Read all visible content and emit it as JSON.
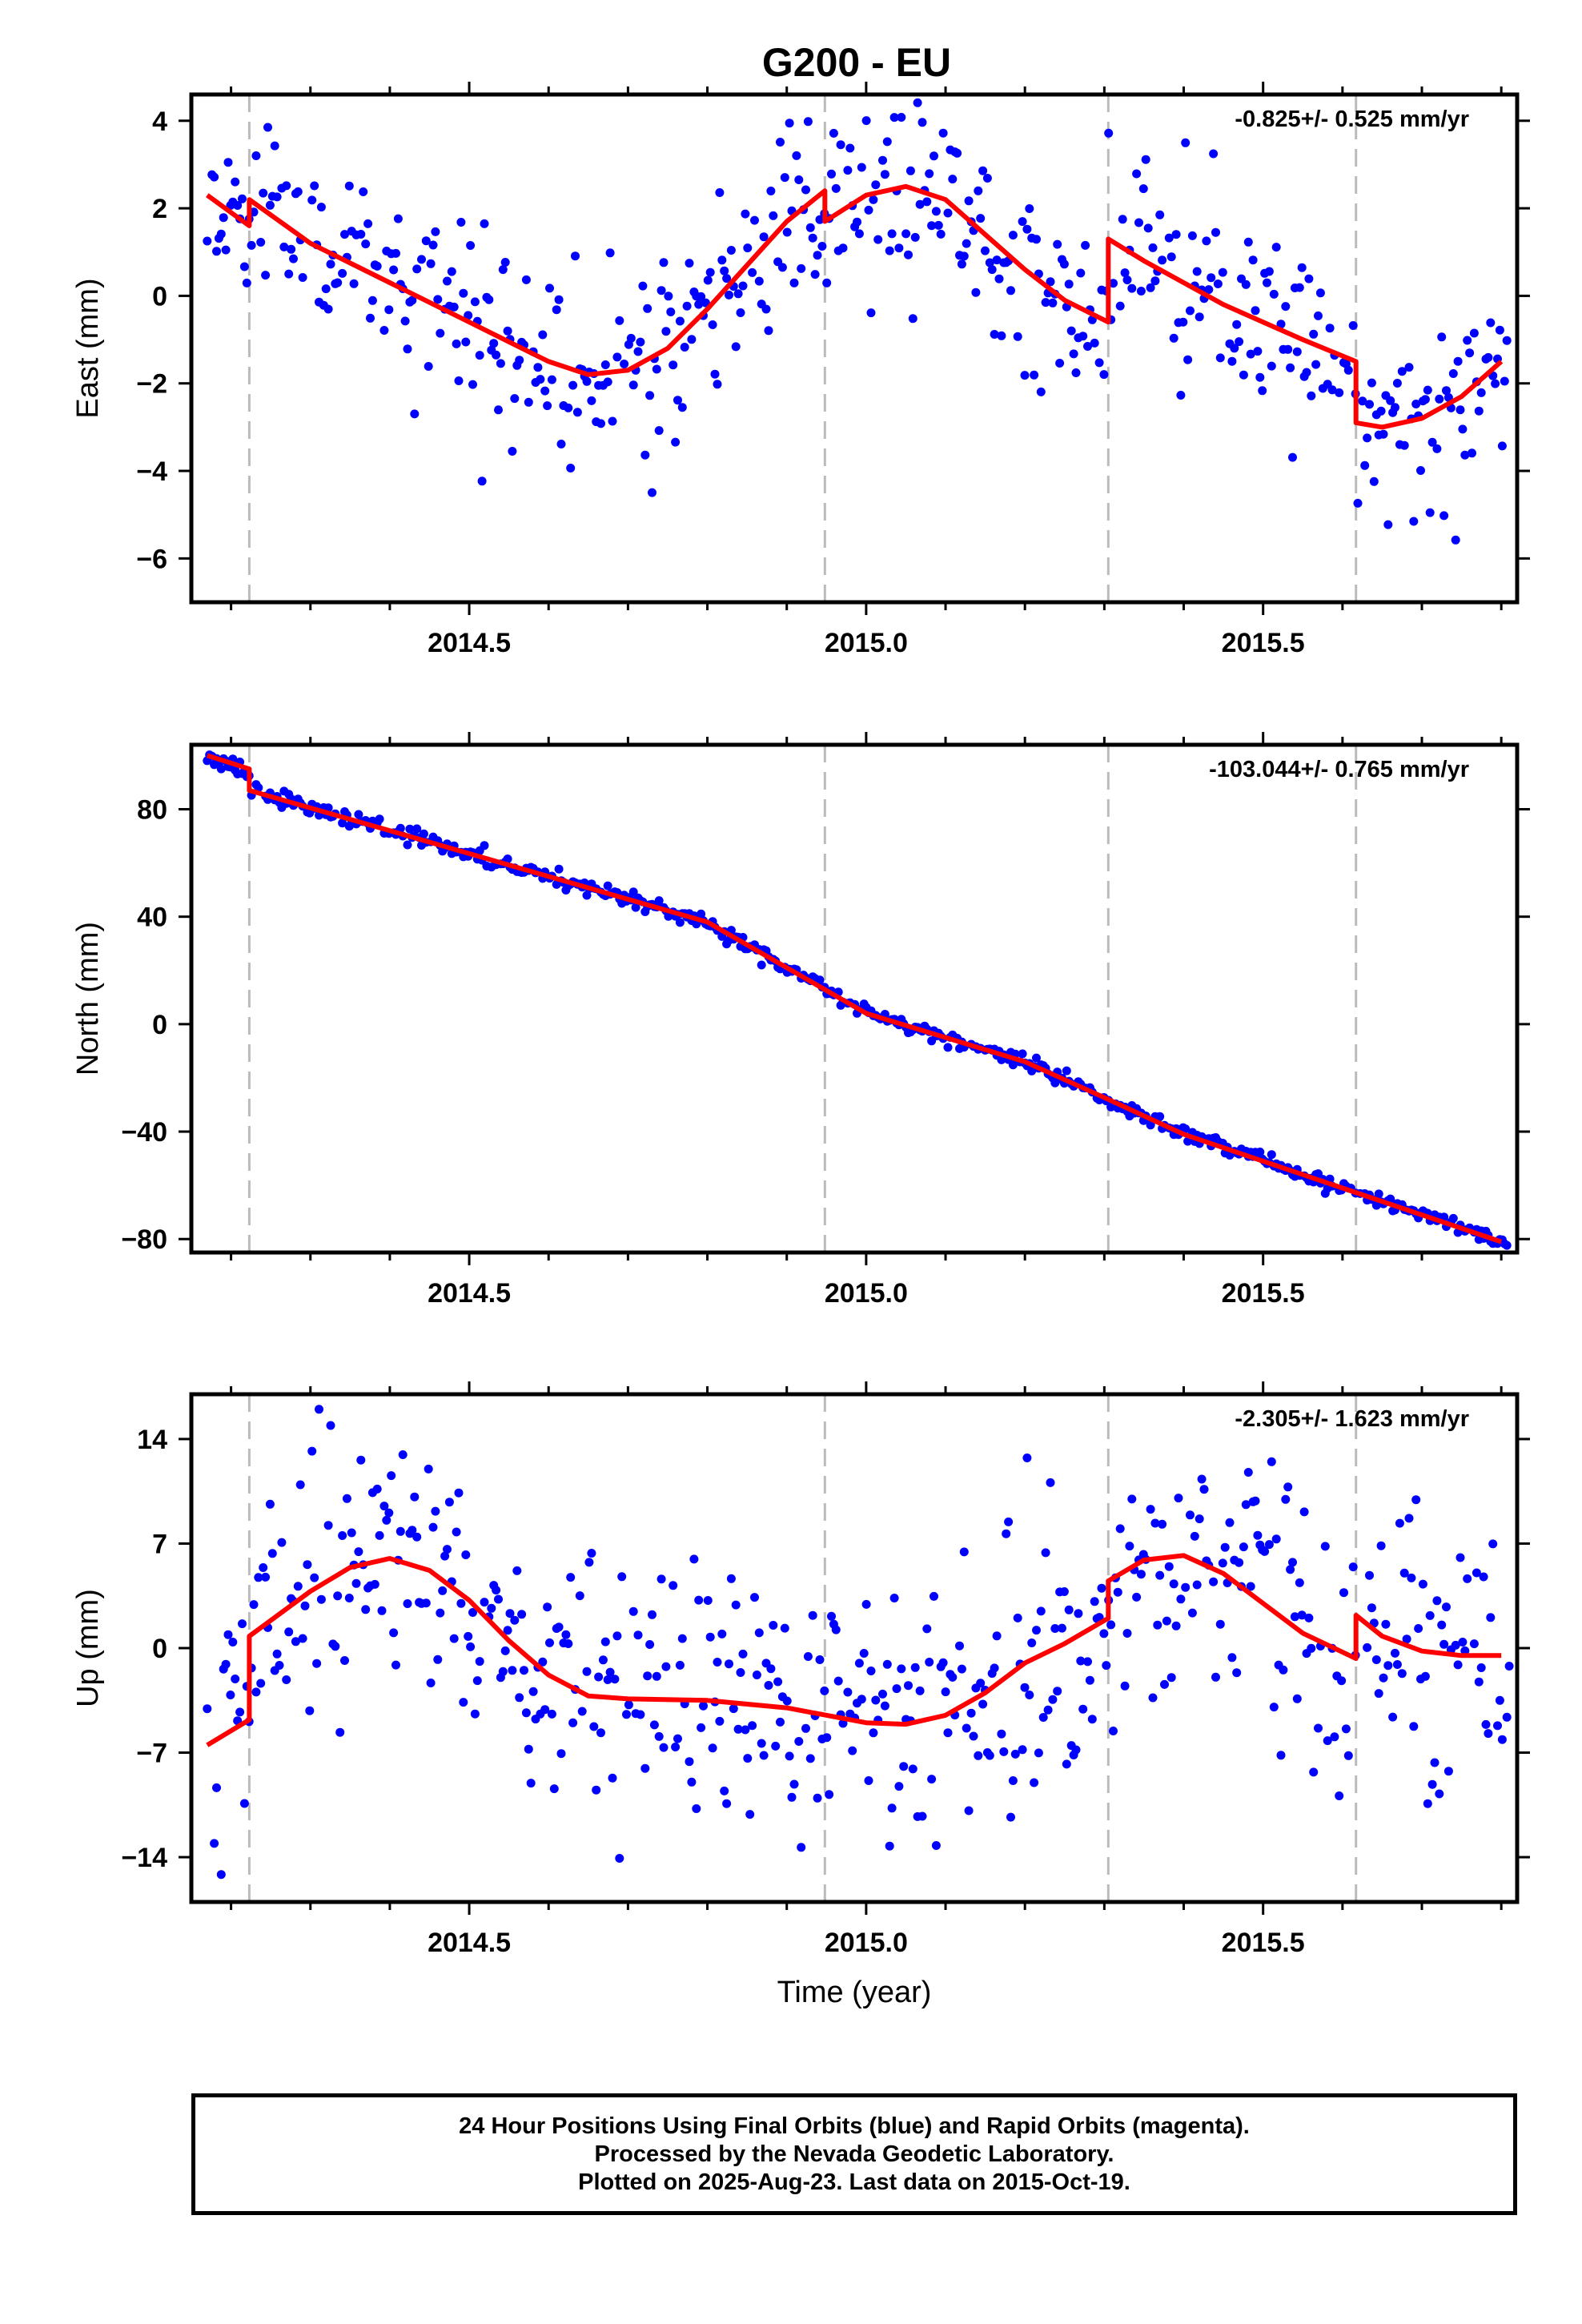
{
  "colors": {
    "final_orbits": "#0000ff",
    "model_fit": "#ff0000",
    "offset_lines": "#bbbbbb",
    "frame": "#000000"
  },
  "chart_data": [
    {
      "type": "scatter",
      "title": "G200 - EU",
      "ylabel": "East (mm)",
      "xlabel": "",
      "rate_annotation": "-0.825+/- 0.525 mm/yr",
      "xlim": [
        2014.15,
        2015.82
      ],
      "ylim": [
        -7.0,
        4.6
      ],
      "xticks": [
        2014.5,
        2015.0,
        2015.5
      ],
      "xtick_labels": [
        "2014.5",
        "2015.0",
        "2015.5"
      ],
      "yticks": [
        4,
        2,
        0,
        -2,
        -4,
        -6
      ],
      "ytick_labels": [
        "4",
        "2",
        "0",
        "−2",
        "−4",
        "−6"
      ],
      "offset_epochs": [
        2014.223,
        2014.948,
        2015.305,
        2015.617
      ],
      "series": [
        {
          "kind": "points",
          "color": "#0000ff",
          "model": {
            "amplitude": 2.1,
            "phase": 0.87,
            "steps": [
              [
                2014.223,
                0.7
              ],
              [
                2014.948,
                -0.7
              ],
              [
                2015.305,
                1.9
              ],
              [
                2015.617,
                -1.4
              ]
            ],
            "start": 2.2,
            "rate": -0.825
          },
          "scatter": 1.1,
          "n": 560,
          "seed": 11
        },
        {
          "kind": "line",
          "name": "",
          "color": "#ff0000",
          "x": [
            2014.17,
            2014.223,
            2014.223,
            2014.3,
            2014.4,
            2014.5,
            2014.6,
            2014.65,
            2014.7,
            2014.75,
            2014.8,
            2014.85,
            2014.9,
            2014.948,
            2014.948,
            2015.0,
            2015.05,
            2015.1,
            2015.15,
            2015.2,
            2015.25,
            2015.305,
            2015.305,
            2015.35,
            2015.4,
            2015.45,
            2015.5,
            2015.55,
            2015.617,
            2015.617,
            2015.65,
            2015.7,
            2015.75,
            2015.8
          ],
          "y": [
            2.3,
            1.6,
            2.2,
            1.2,
            0.3,
            -0.6,
            -1.5,
            -1.8,
            -1.7,
            -1.2,
            -0.3,
            0.7,
            1.7,
            2.4,
            1.7,
            2.3,
            2.5,
            2.2,
            1.4,
            0.6,
            -0.1,
            -0.6,
            1.3,
            0.8,
            0.3,
            -0.2,
            -0.6,
            -1.0,
            -1.5,
            -2.9,
            -3.0,
            -2.8,
            -2.3,
            -1.5
          ]
        }
      ]
    },
    {
      "type": "scatter",
      "title": "",
      "ylabel": "North (mm)",
      "xlabel": "",
      "rate_annotation": "-103.044+/- 0.765 mm/yr",
      "xlim": [
        2014.15,
        2015.82
      ],
      "ylim": [
        -85,
        104
      ],
      "xticks": [
        2014.5,
        2015.0,
        2015.5
      ],
      "xtick_labels": [
        "2014.5",
        "2015.0",
        "2015.5"
      ],
      "yticks": [
        80,
        40,
        0,
        -40,
        -80
      ],
      "ytick_labels": [
        "80",
        "40",
        "0",
        "−40",
        "−80"
      ],
      "offset_epochs": [
        2014.223,
        2014.948,
        2015.305,
        2015.617
      ],
      "series": [
        {
          "kind": "points",
          "color": "#0000ff",
          "linear": {
            "x0": 2014.17,
            "y0": 100,
            "rate": -103.044,
            "step_at": 2014.223,
            "step": -8
          },
          "scatter": 1.5,
          "n": 560,
          "seed": 23
        },
        {
          "kind": "line",
          "name": "",
          "color": "#ff0000",
          "x": [
            2014.17,
            2014.223,
            2014.223,
            2014.4,
            2014.6,
            2014.8,
            2015.0,
            2015.2,
            2015.305,
            2015.4,
            2015.6,
            2015.8
          ],
          "y": [
            100,
            95,
            87,
            72,
            55,
            38,
            4,
            -14,
            -28,
            -41,
            -61,
            -81
          ]
        }
      ]
    },
    {
      "type": "scatter",
      "title": "",
      "ylabel": "Up (mm)",
      "xlabel": "Time (year)",
      "rate_annotation": "-2.305+/- 1.623 mm/yr",
      "xlim": [
        2014.15,
        2015.82
      ],
      "ylim": [
        -17,
        17
      ],
      "xticks": [
        2014.5,
        2015.0,
        2015.5
      ],
      "xtick_labels": [
        "2014.5",
        "2015.0",
        "2015.5"
      ],
      "yticks": [
        14,
        7,
        0,
        -7,
        -14
      ],
      "ytick_labels": [
        "14",
        "7",
        "0",
        "−7",
        "−14"
      ],
      "offset_epochs": [
        2014.223,
        2014.948,
        2015.305,
        2015.617
      ],
      "series": [
        {
          "kind": "points",
          "color": "#0000ff",
          "scatter": 4.5,
          "n": 560,
          "seed": 37
        },
        {
          "kind": "line",
          "name": "",
          "color": "#ff0000",
          "x": [
            2014.17,
            2014.223,
            2014.223,
            2014.3,
            2014.35,
            2014.4,
            2014.45,
            2014.5,
            2014.55,
            2014.6,
            2014.65,
            2014.7,
            2014.8,
            2014.9,
            2015.0,
            2015.05,
            2015.1,
            2015.15,
            2015.2,
            2015.25,
            2015.305,
            2015.305,
            2015.35,
            2015.4,
            2015.45,
            2015.5,
            2015.55,
            2015.617,
            2015.617,
            2015.65,
            2015.7,
            2015.75,
            2015.8
          ],
          "y": [
            -6.5,
            -4.8,
            0.8,
            3.8,
            5.4,
            6.0,
            5.2,
            3.2,
            0.5,
            -1.8,
            -3.2,
            -3.4,
            -3.5,
            -4.0,
            -5.0,
            -5.1,
            -4.5,
            -3.0,
            -1.0,
            0.3,
            2.0,
            4.5,
            5.9,
            6.2,
            5.0,
            3.0,
            1.0,
            -0.7,
            2.2,
            0.8,
            -0.2,
            -0.5,
            -0.5
          ]
        }
      ]
    }
  ],
  "footer": {
    "line1": "24 Hour Positions Using Final Orbits (blue) and Rapid Orbits (magenta).",
    "line2": "Processed by the Nevada Geodetic Laboratory.",
    "line3": "Plotted on 2025-Aug-23. Last data on 2015-Oct-19."
  }
}
